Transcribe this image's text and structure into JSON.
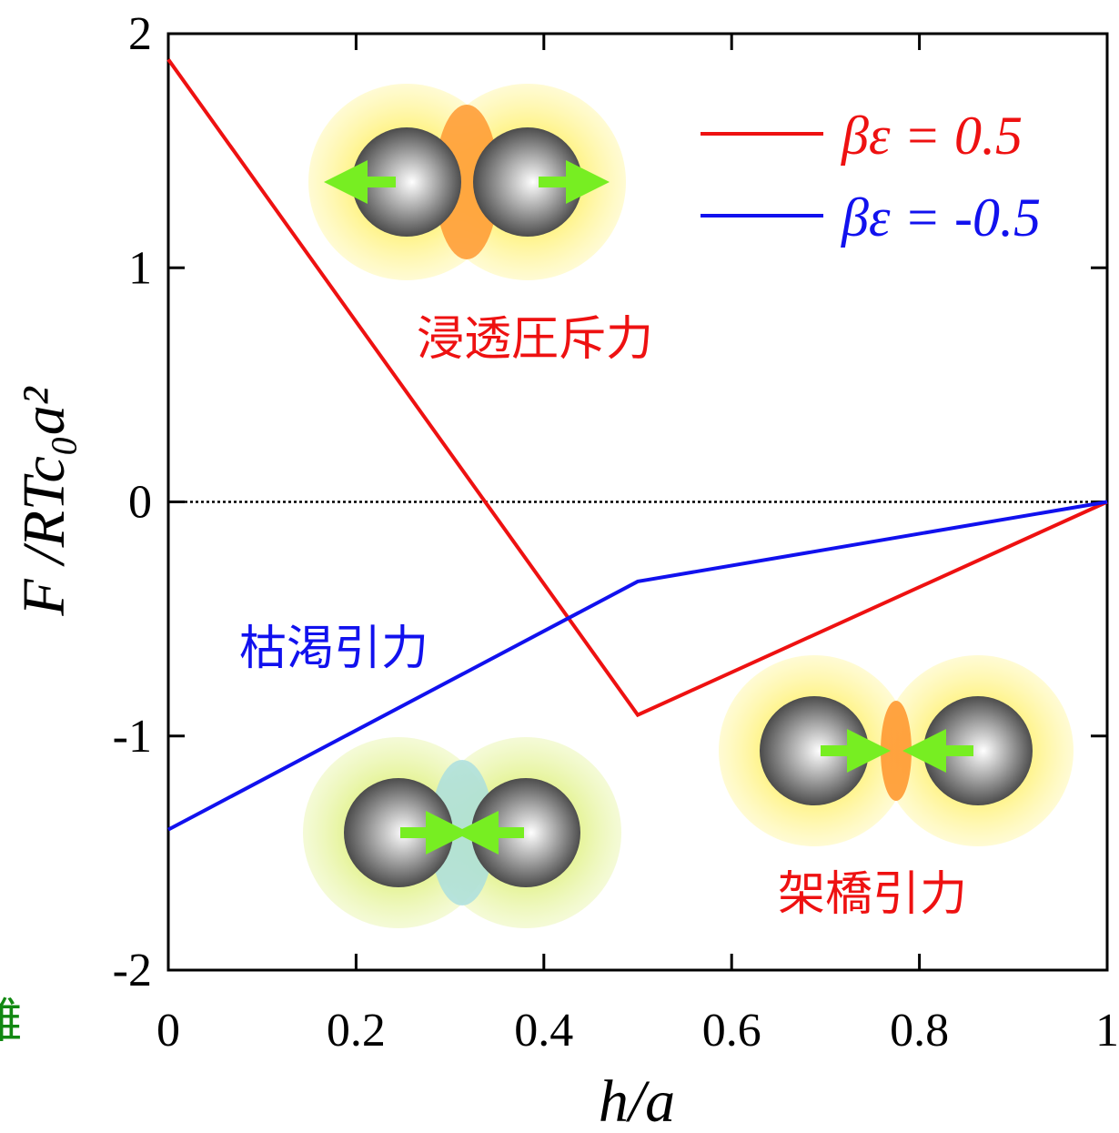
{
  "chart_data": {
    "type": "line",
    "xlabel": "h/a",
    "ylabel": "F /RTc₀a²",
    "x": [
      0,
      0.5,
      1
    ],
    "series": [
      {
        "name": "βε = 0.5",
        "color": "#ee1111",
        "values": [
          1.89,
          -0.91,
          0
        ]
      },
      {
        "name": "βε = -0.5",
        "color": "#1111ee",
        "values": [
          -1.4,
          -0.34,
          0
        ]
      }
    ],
    "xlim": [
      0,
      1
    ],
    "ylim": [
      -2,
      2
    ],
    "xticks": [
      0,
      0.2,
      0.4,
      0.6,
      0.8,
      1
    ],
    "yticks": [
      -2,
      -1,
      0,
      1,
      2
    ],
    "zero_line": true,
    "legend": "upper right",
    "annotations": [
      {
        "text": "浸透圧斥力",
        "color": "#ee1111"
      },
      {
        "text": "枯渇引力",
        "color": "#1111ee"
      },
      {
        "text": "架橋引力",
        "color": "#ee1111"
      },
      {
        "text": "雑",
        "color": "#118811"
      }
    ]
  }
}
